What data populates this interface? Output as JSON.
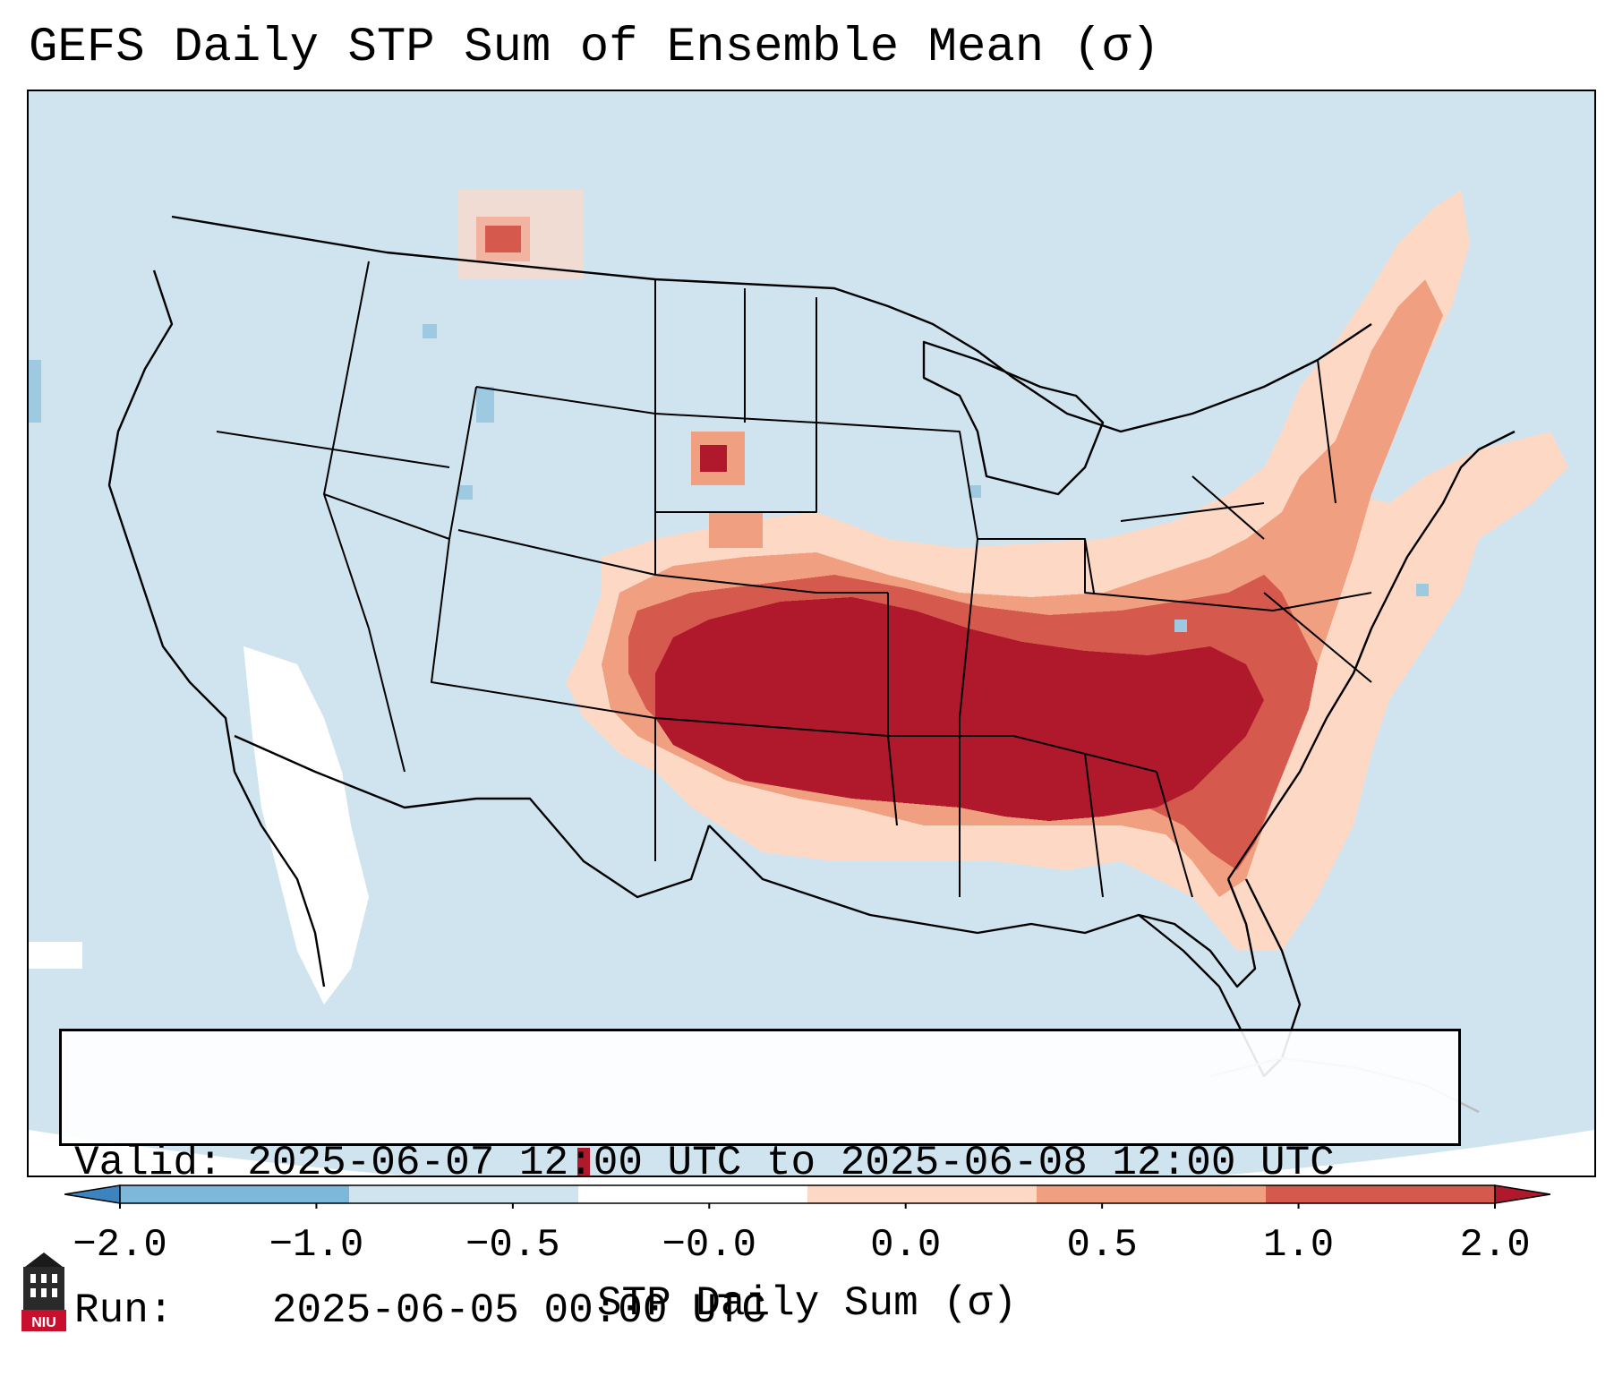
{
  "title": "GEFS Daily STP Sum of Ensemble Mean (σ)",
  "info": {
    "valid_label": "Valid:",
    "valid_value": "2025-06-07 12:00 UTC to 2025-06-08 12:00 UTC",
    "run_label": "Run:",
    "run_value": "2025-06-05 00:00 UTC"
  },
  "colorbar": {
    "label": "STP Daily Sum (σ)",
    "ticks": [
      "−2.0",
      "−1.0",
      "−0.5",
      "−0.0",
      "0.0",
      "0.5",
      "1.0",
      "2.0"
    ],
    "colors": [
      "#3d83bd",
      "#7db7d9",
      "#d0e4f0",
      "#ffffff",
      "#fdd8c4",
      "#f19f81",
      "#d55a4d",
      "#b0192c"
    ],
    "extend": "both"
  },
  "colors": {
    "background": "#d0e4f0",
    "strong_positive": "#b0192c",
    "moderate_positive": "#d55a4d",
    "weak_positive": "#f19f81",
    "slight_positive": "#fdd8c4",
    "near_zero": "#ffffff",
    "slight_negative": "#9ecae1"
  },
  "logo": {
    "text": "NIU",
    "icon": "university-building-icon"
  }
}
